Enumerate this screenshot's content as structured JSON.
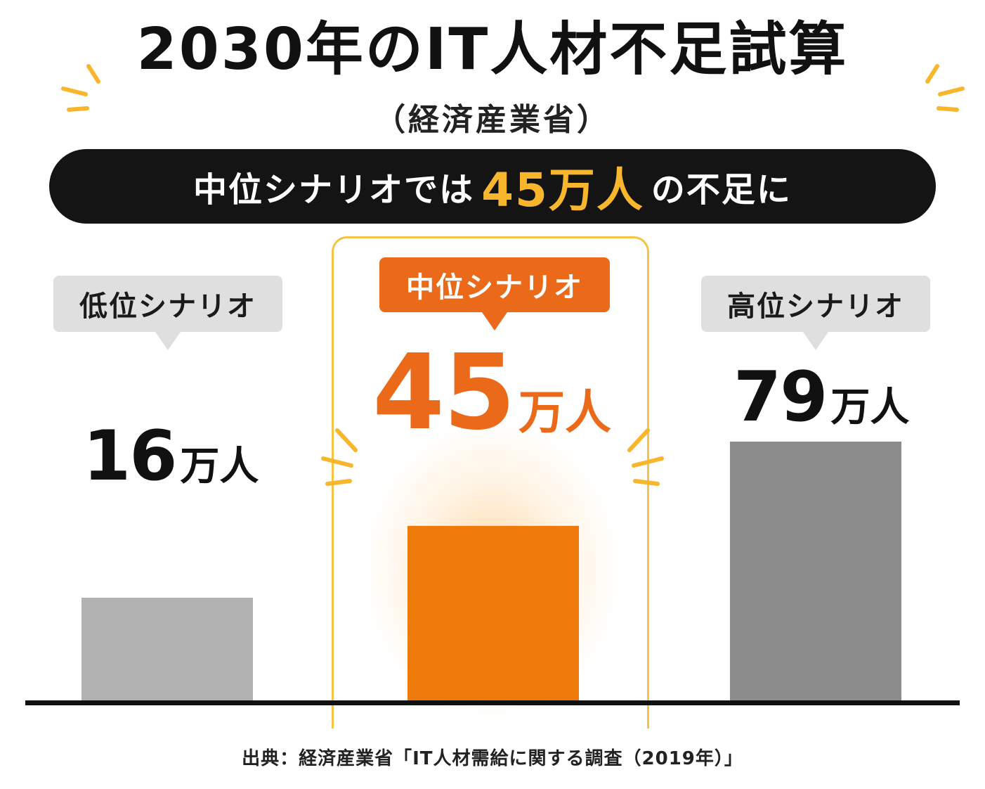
{
  "title": "2030年のIT人材不足試算",
  "subtitle": "（経済産業省）",
  "banner": {
    "prefix": "中位シナリオでは",
    "highlight": "45万人",
    "suffix": "の不足に"
  },
  "source": "出典：経済産業省「IT人材需給に関する調査（2019年）」",
  "colors": {
    "low": "#b1b1b1",
    "mid": "#ee7a0b",
    "high": "#8c8c8c",
    "accent": "#f7b62c",
    "frame": "#f6c445"
  },
  "chart_data": {
    "type": "bar",
    "categories": [
      "低位シナリオ",
      "中位シナリオ",
      "高位シナリオ"
    ],
    "values": [
      16,
      45,
      79
    ],
    "unit": "万人",
    "value_labels": [
      "16",
      "45",
      "79"
    ],
    "highlighted": "中位シナリオ",
    "grid": false
  }
}
